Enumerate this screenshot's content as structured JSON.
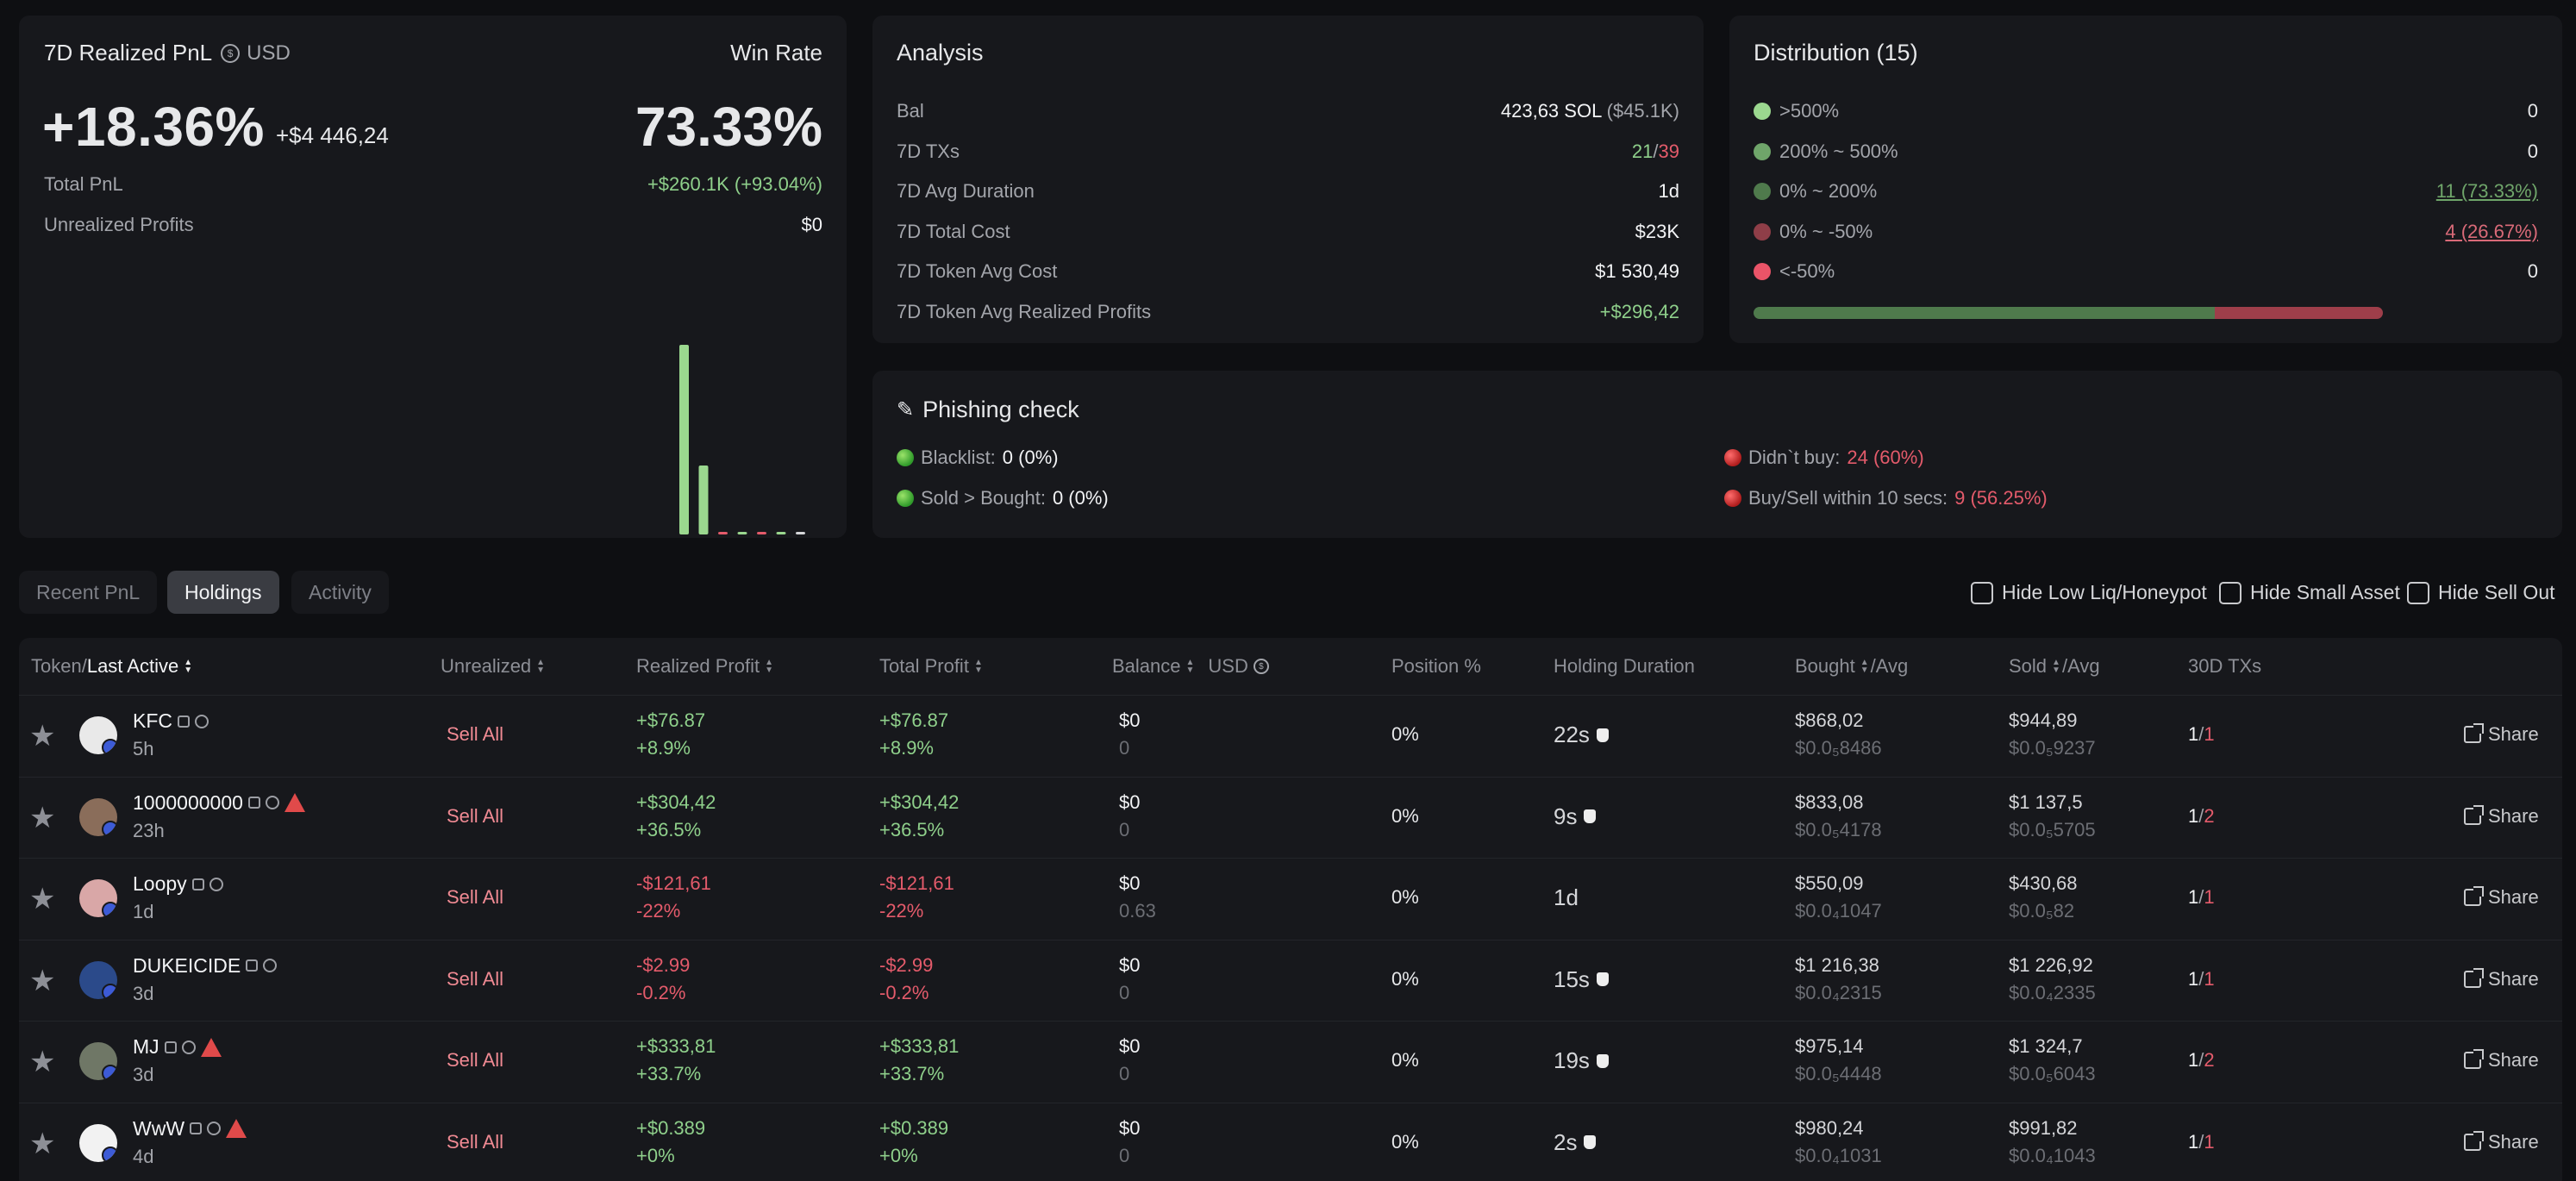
{
  "pnl": {
    "title": "7D Realized PnL",
    "currency": "USD",
    "winrate_label": "Win Rate",
    "realized_pct": "+18.36%",
    "realized_amount": "+$4 446,24",
    "winrate": "73.33%",
    "total_pnl_label": "Total PnL",
    "total_pnl_value": "+$260.1K (+93.04%)",
    "unrealized_label": "Unrealized Profits",
    "unrealized_value": "$0"
  },
  "chart_data": {
    "type": "bar",
    "categories": [
      ">500%",
      "200% ~ 500%",
      "0% ~ 200%",
      "0% ~ -50%",
      "<-50%"
    ],
    "series": [
      {
        "values": [
          0,
          0,
          11,
          4,
          0
        ]
      }
    ],
    "ylim": [
      0,
      12
    ]
  },
  "analysis": {
    "title": "Analysis",
    "bal_label": "Bal",
    "bal_value": "423,63 SOL",
    "bal_usd": "($45.1K)",
    "txs_label": "7D TXs",
    "txs_win": "21",
    "txs_sep": "/",
    "txs_loss": "39",
    "avg_dur_label": "7D Avg Duration",
    "avg_dur_value": "1d",
    "total_cost_label": "7D Total Cost",
    "total_cost_value": "$23K",
    "token_avg_cost_label": "7D Token Avg Cost",
    "token_avg_cost_value": "$1 530,49",
    "token_avg_profit_label": "7D Token Avg Realized Profits",
    "token_avg_profit_value": "+$296,42"
  },
  "distribution": {
    "title": "Distribution (15)",
    "rows": [
      {
        "label": ">500%",
        "value": "0",
        "color": "#9bd88f"
      },
      {
        "label": "200% ~ 500%",
        "value": "0",
        "color": "#6fa56a"
      },
      {
        "label": "0% ~ 200%",
        "value": "11 (73.33%)",
        "color": "#4f7a4c"
      },
      {
        "label": "0% ~ -50%",
        "value": "4 (26.67%)",
        "color": "#8f3e48"
      },
      {
        "label": "<-50%",
        "value": "0",
        "color": "#ea5468"
      }
    ],
    "bar_green_fraction": 0.7333,
    "bar_green": "#4f7a4c",
    "bar_red": "#9e3e4a"
  },
  "phishing": {
    "title": "Phishing check",
    "blacklist_label": "Blacklist:",
    "blacklist_value": "0 (0%)",
    "sold_label": "Sold > Bought:",
    "sold_value": "0 (0%)",
    "didnt_buy_label": "Didn`t buy:",
    "didnt_buy_value": "24 (60%)",
    "fast_label": "Buy/Sell within 10 secs:",
    "fast_value": "9 (56.25%)"
  },
  "tabs": [
    "Recent PnL",
    "Holdings",
    "Activity"
  ],
  "filters": [
    "Hide Low Liq/Honeypot",
    "Hide Small Asset",
    "Hide Sell Out"
  ],
  "table": {
    "headers": {
      "token_prefix": "Token/",
      "token_sort": "Last Active",
      "unrealized": "Unrealized",
      "realized": "Realized Profit",
      "total": "Total Profit",
      "balance": "Balance",
      "usd": "USD",
      "position": "Position %",
      "holding": "Holding Duration",
      "bought": "Bought",
      "bought_avg": "/Avg",
      "sold": "Sold",
      "sold_avg": "/Avg",
      "txs": "30D TXs"
    },
    "sell_all": "Sell All",
    "share": "Share",
    "rows": [
      {
        "name": "KFC",
        "age": "5h",
        "warn": false,
        "realized": "+$76.87",
        "realized_pct": "+8.9%",
        "total": "+$76.87",
        "total_pct": "+8.9%",
        "positive": true,
        "balance": "$0",
        "balance_sub": "0",
        "position": "0%",
        "duration": "22s",
        "bought": "$868,02",
        "bought_avg": "$0.0₅8486",
        "sold": "$944,89",
        "sold_avg": "$0.0₅9237",
        "tx_buy": "1",
        "tx_sell": "1",
        "avatar_color": "#e9e9e9"
      },
      {
        "name": "1000000000",
        "age": "23h",
        "warn": true,
        "realized": "+$304,42",
        "realized_pct": "+36.5%",
        "total": "+$304,42",
        "total_pct": "+36.5%",
        "positive": true,
        "balance": "$0",
        "balance_sub": "0",
        "position": "0%",
        "duration": "9s",
        "bought": "$833,08",
        "bought_avg": "$0.0₅4178",
        "sold": "$1 137,5",
        "sold_avg": "$0.0₅5705",
        "tx_buy": "1",
        "tx_sell": "2",
        "avatar_color": "#8a6d5a"
      },
      {
        "name": "Loopy",
        "age": "1d",
        "warn": false,
        "realized": "-$121,61",
        "realized_pct": "-22%",
        "total": "-$121,61",
        "total_pct": "-22%",
        "positive": false,
        "balance": "$0",
        "balance_sub": "0.63",
        "position": "0%",
        "duration": "1d",
        "bought": "$550,09",
        "bought_avg": "$0.0₄1047",
        "sold": "$430,68",
        "sold_avg": "$0.0₅82",
        "tx_buy": "1",
        "tx_sell": "1",
        "avatar_color": "#d9a7a7"
      },
      {
        "name": "DUKEICIDE",
        "age": "3d",
        "warn": false,
        "realized": "-$2.99",
        "realized_pct": "-0.2%",
        "total": "-$2.99",
        "total_pct": "-0.2%",
        "positive": false,
        "balance": "$0",
        "balance_sub": "0",
        "position": "0%",
        "duration": "15s",
        "bought": "$1 216,38",
        "bought_avg": "$0.0₄2315",
        "sold": "$1 226,92",
        "sold_avg": "$0.0₄2335",
        "tx_buy": "1",
        "tx_sell": "1",
        "avatar_color": "#2b4a8a"
      },
      {
        "name": "MJ",
        "age": "3d",
        "warn": true,
        "realized": "+$333,81",
        "realized_pct": "+33.7%",
        "total": "+$333,81",
        "total_pct": "+33.7%",
        "positive": true,
        "balance": "$0",
        "balance_sub": "0",
        "position": "0%",
        "duration": "19s",
        "bought": "$975,14",
        "bought_avg": "$0.0₅4448",
        "sold": "$1 324,7",
        "sold_avg": "$0.0₅6043",
        "tx_buy": "1",
        "tx_sell": "2",
        "avatar_color": "#6f7766"
      },
      {
        "name": "WwW",
        "age": "4d",
        "warn": true,
        "realized": "+$0.389",
        "realized_pct": "+0%",
        "total": "+$0.389",
        "total_pct": "+0%",
        "positive": true,
        "balance": "$0",
        "balance_sub": "0",
        "position": "0%",
        "duration": "2s",
        "bought": "$980,24",
        "bought_avg": "$0.0₄1031",
        "sold": "$991,82",
        "sold_avg": "$0.0₄1043",
        "tx_buy": "1",
        "tx_sell": "1",
        "avatar_color": "#f2f2f2"
      }
    ]
  }
}
